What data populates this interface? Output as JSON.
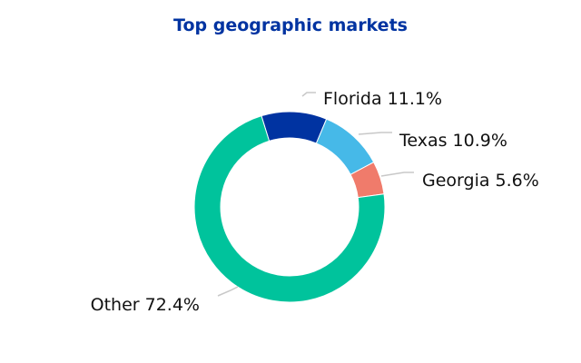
{
  "chart_data": {
    "type": "pie",
    "variant": "donut",
    "title": "Top geographic markets",
    "slices": [
      {
        "name": "Florida",
        "value": 11.1,
        "label": "Florida 11.1%",
        "color": "#0033a1"
      },
      {
        "name": "Texas",
        "value": 10.9,
        "label": "Texas 10.9%",
        "color": "#46b9e8"
      },
      {
        "name": "Georgia",
        "value": 5.6,
        "label": "Georgia 5.6%",
        "color": "#f07b6b"
      },
      {
        "name": "Other",
        "value": 72.4,
        "label": "Other 72.4%",
        "color": "#00c39c"
      }
    ],
    "legend": "none",
    "grid": false
  }
}
